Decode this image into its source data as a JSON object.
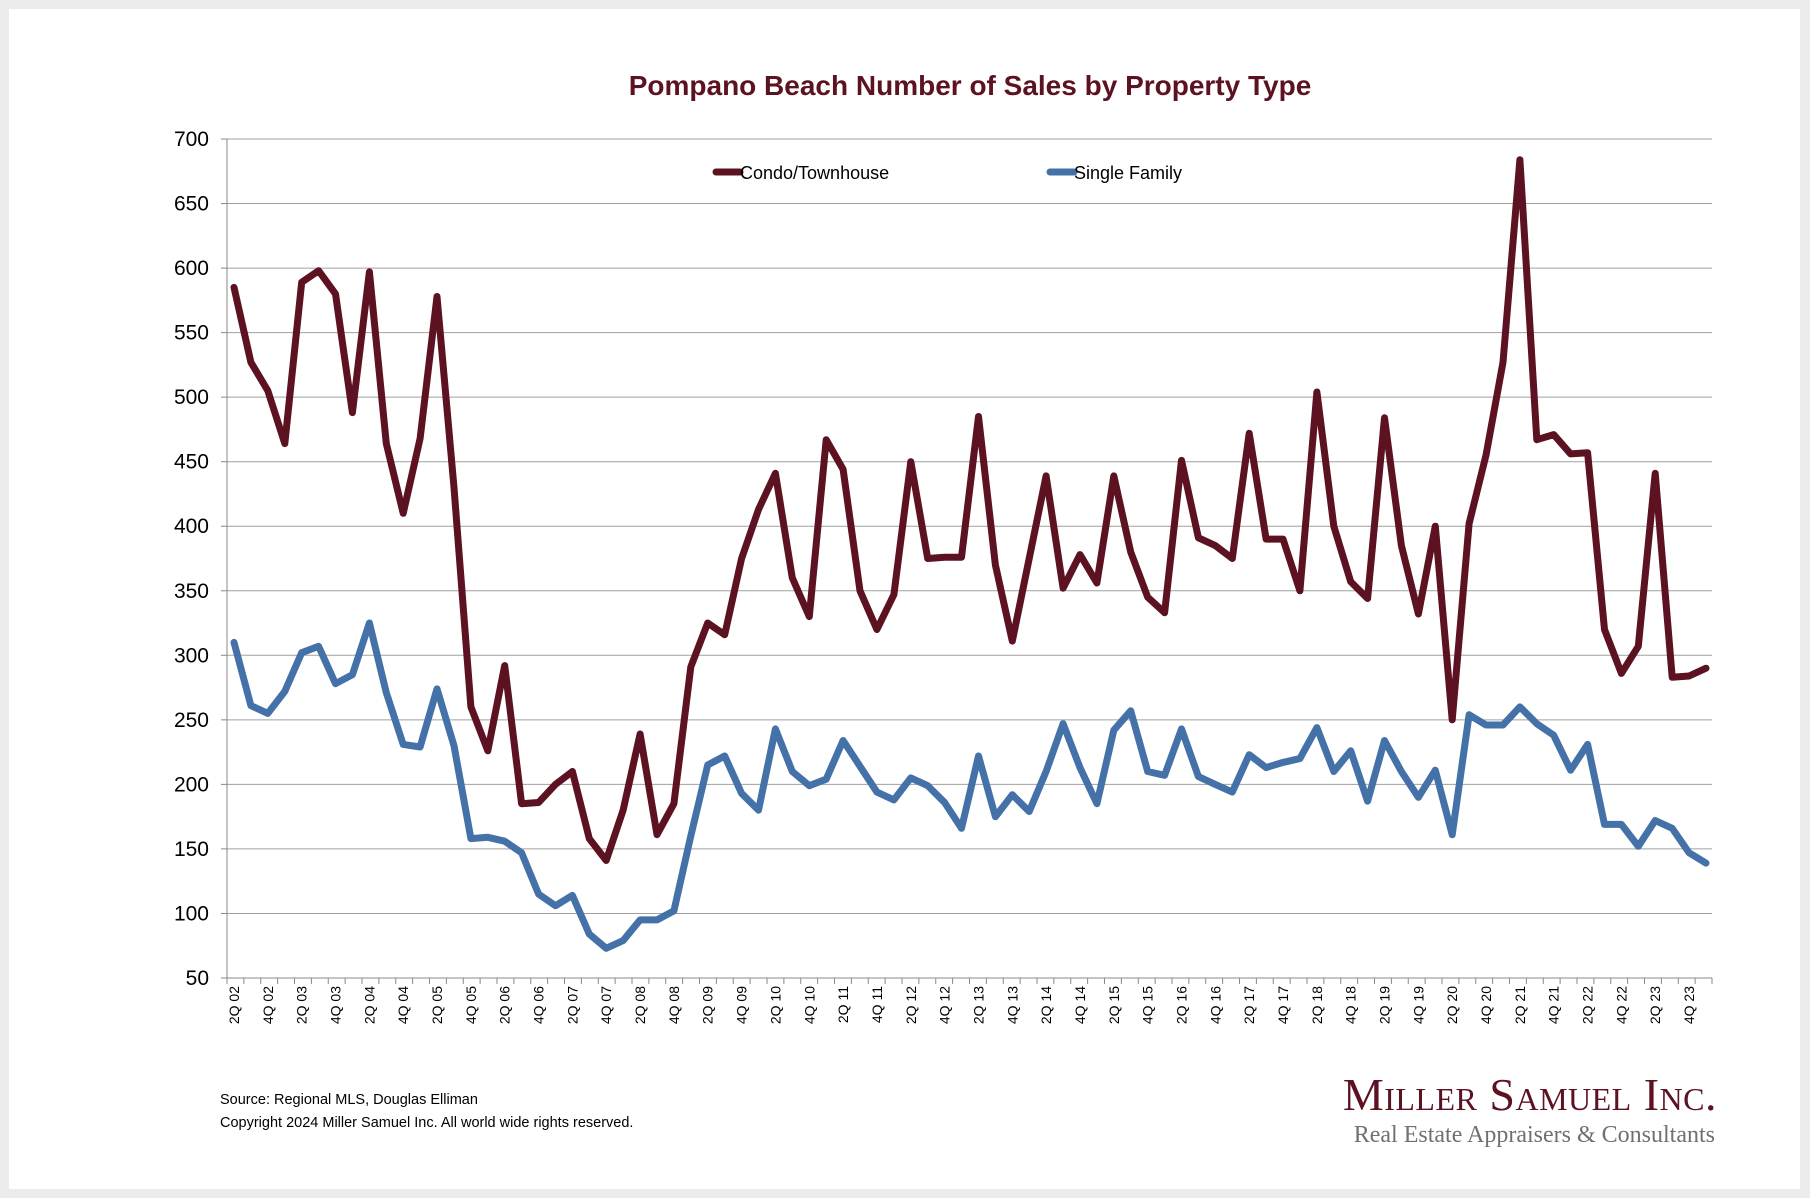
{
  "chart_data": {
    "type": "line",
    "title": "Pompano Beach Number of Sales by Property Type",
    "xlabel": "",
    "ylabel": "",
    "ylim": [
      50,
      700
    ],
    "yticks": [
      50,
      100,
      150,
      200,
      250,
      300,
      350,
      400,
      450,
      500,
      550,
      600,
      650,
      700
    ],
    "grid": true,
    "legend_position": "top-center",
    "x_tick_labels": [
      "2Q 02",
      "4Q 02",
      "2Q 03",
      "4Q 03",
      "2Q 04",
      "4Q 04",
      "2Q 05",
      "4Q 05",
      "2Q 06",
      "4Q 06",
      "2Q 07",
      "4Q 07",
      "2Q 08",
      "4Q 08",
      "2Q 09",
      "4Q 09",
      "2Q 10",
      "4Q 10",
      "2Q 11",
      "4Q 11",
      "2Q 12",
      "4Q 12",
      "2Q 13",
      "4Q 13",
      "2Q 14",
      "4Q 14",
      "2Q 15",
      "4Q 15",
      "2Q 16",
      "4Q 16",
      "2Q 17",
      "4Q 17",
      "2Q 18",
      "4Q 18",
      "2Q 19",
      "4Q 19",
      "2Q 20",
      "4Q 20",
      "2Q 21",
      "4Q 21",
      "2Q 22",
      "4Q 22",
      "2Q 23",
      "4Q 23"
    ],
    "series": [
      {
        "name": "Condo/Townhouse",
        "color": "#5c1220",
        "values": [
          585,
          527,
          505,
          464,
          589,
          598,
          580,
          488,
          597,
          464,
          410,
          468,
          578,
          430,
          260,
          226,
          292,
          185,
          186,
          200,
          210,
          158,
          141,
          180,
          239,
          161,
          185,
          291,
          325,
          316,
          375,
          413,
          441,
          360,
          330,
          467,
          444,
          350,
          320,
          347,
          450,
          375,
          376,
          376,
          485,
          370,
          311,
          375,
          439,
          352,
          378,
          356,
          439,
          380,
          345,
          333,
          451,
          391,
          385,
          375,
          472,
          390,
          390,
          350,
          504,
          400,
          357,
          344,
          484,
          385,
          332,
          400,
          250,
          402,
          455,
          527,
          684,
          467,
          471,
          456,
          457,
          320,
          286,
          307,
          441,
          283,
          284,
          290
        ]
      },
      {
        "name": "Single Family",
        "color": "#4472a8",
        "values": [
          310,
          261,
          255,
          272,
          302,
          307,
          278,
          285,
          325,
          271,
          231,
          229,
          274,
          230,
          158,
          159,
          156,
          147,
          115,
          106,
          114,
          84,
          73,
          79,
          95,
          95,
          102,
          160,
          215,
          222,
          193,
          180,
          243,
          210,
          199,
          204,
          234,
          214,
          194,
          188,
          205,
          199,
          186,
          166,
          222,
          175,
          192,
          179,
          210,
          247,
          213,
          185,
          242,
          257,
          210,
          207,
          243,
          206,
          200,
          194,
          223,
          213,
          217,
          220,
          244,
          210,
          226,
          187,
          234,
          210,
          190,
          211,
          161,
          254,
          246,
          246,
          260,
          247,
          238,
          211,
          231,
          169,
          169,
          152,
          172,
          166,
          147,
          139
        ]
      }
    ]
  },
  "footer": {
    "source": "Source: Regional MLS, Douglas Elliman",
    "copyright": "Copyright 2024 Miller Samuel Inc.  All world wide rights reserved."
  },
  "logo": {
    "name": "Miller Samuel Inc.",
    "tagline": "Real Estate Appraisers & Consultants"
  }
}
